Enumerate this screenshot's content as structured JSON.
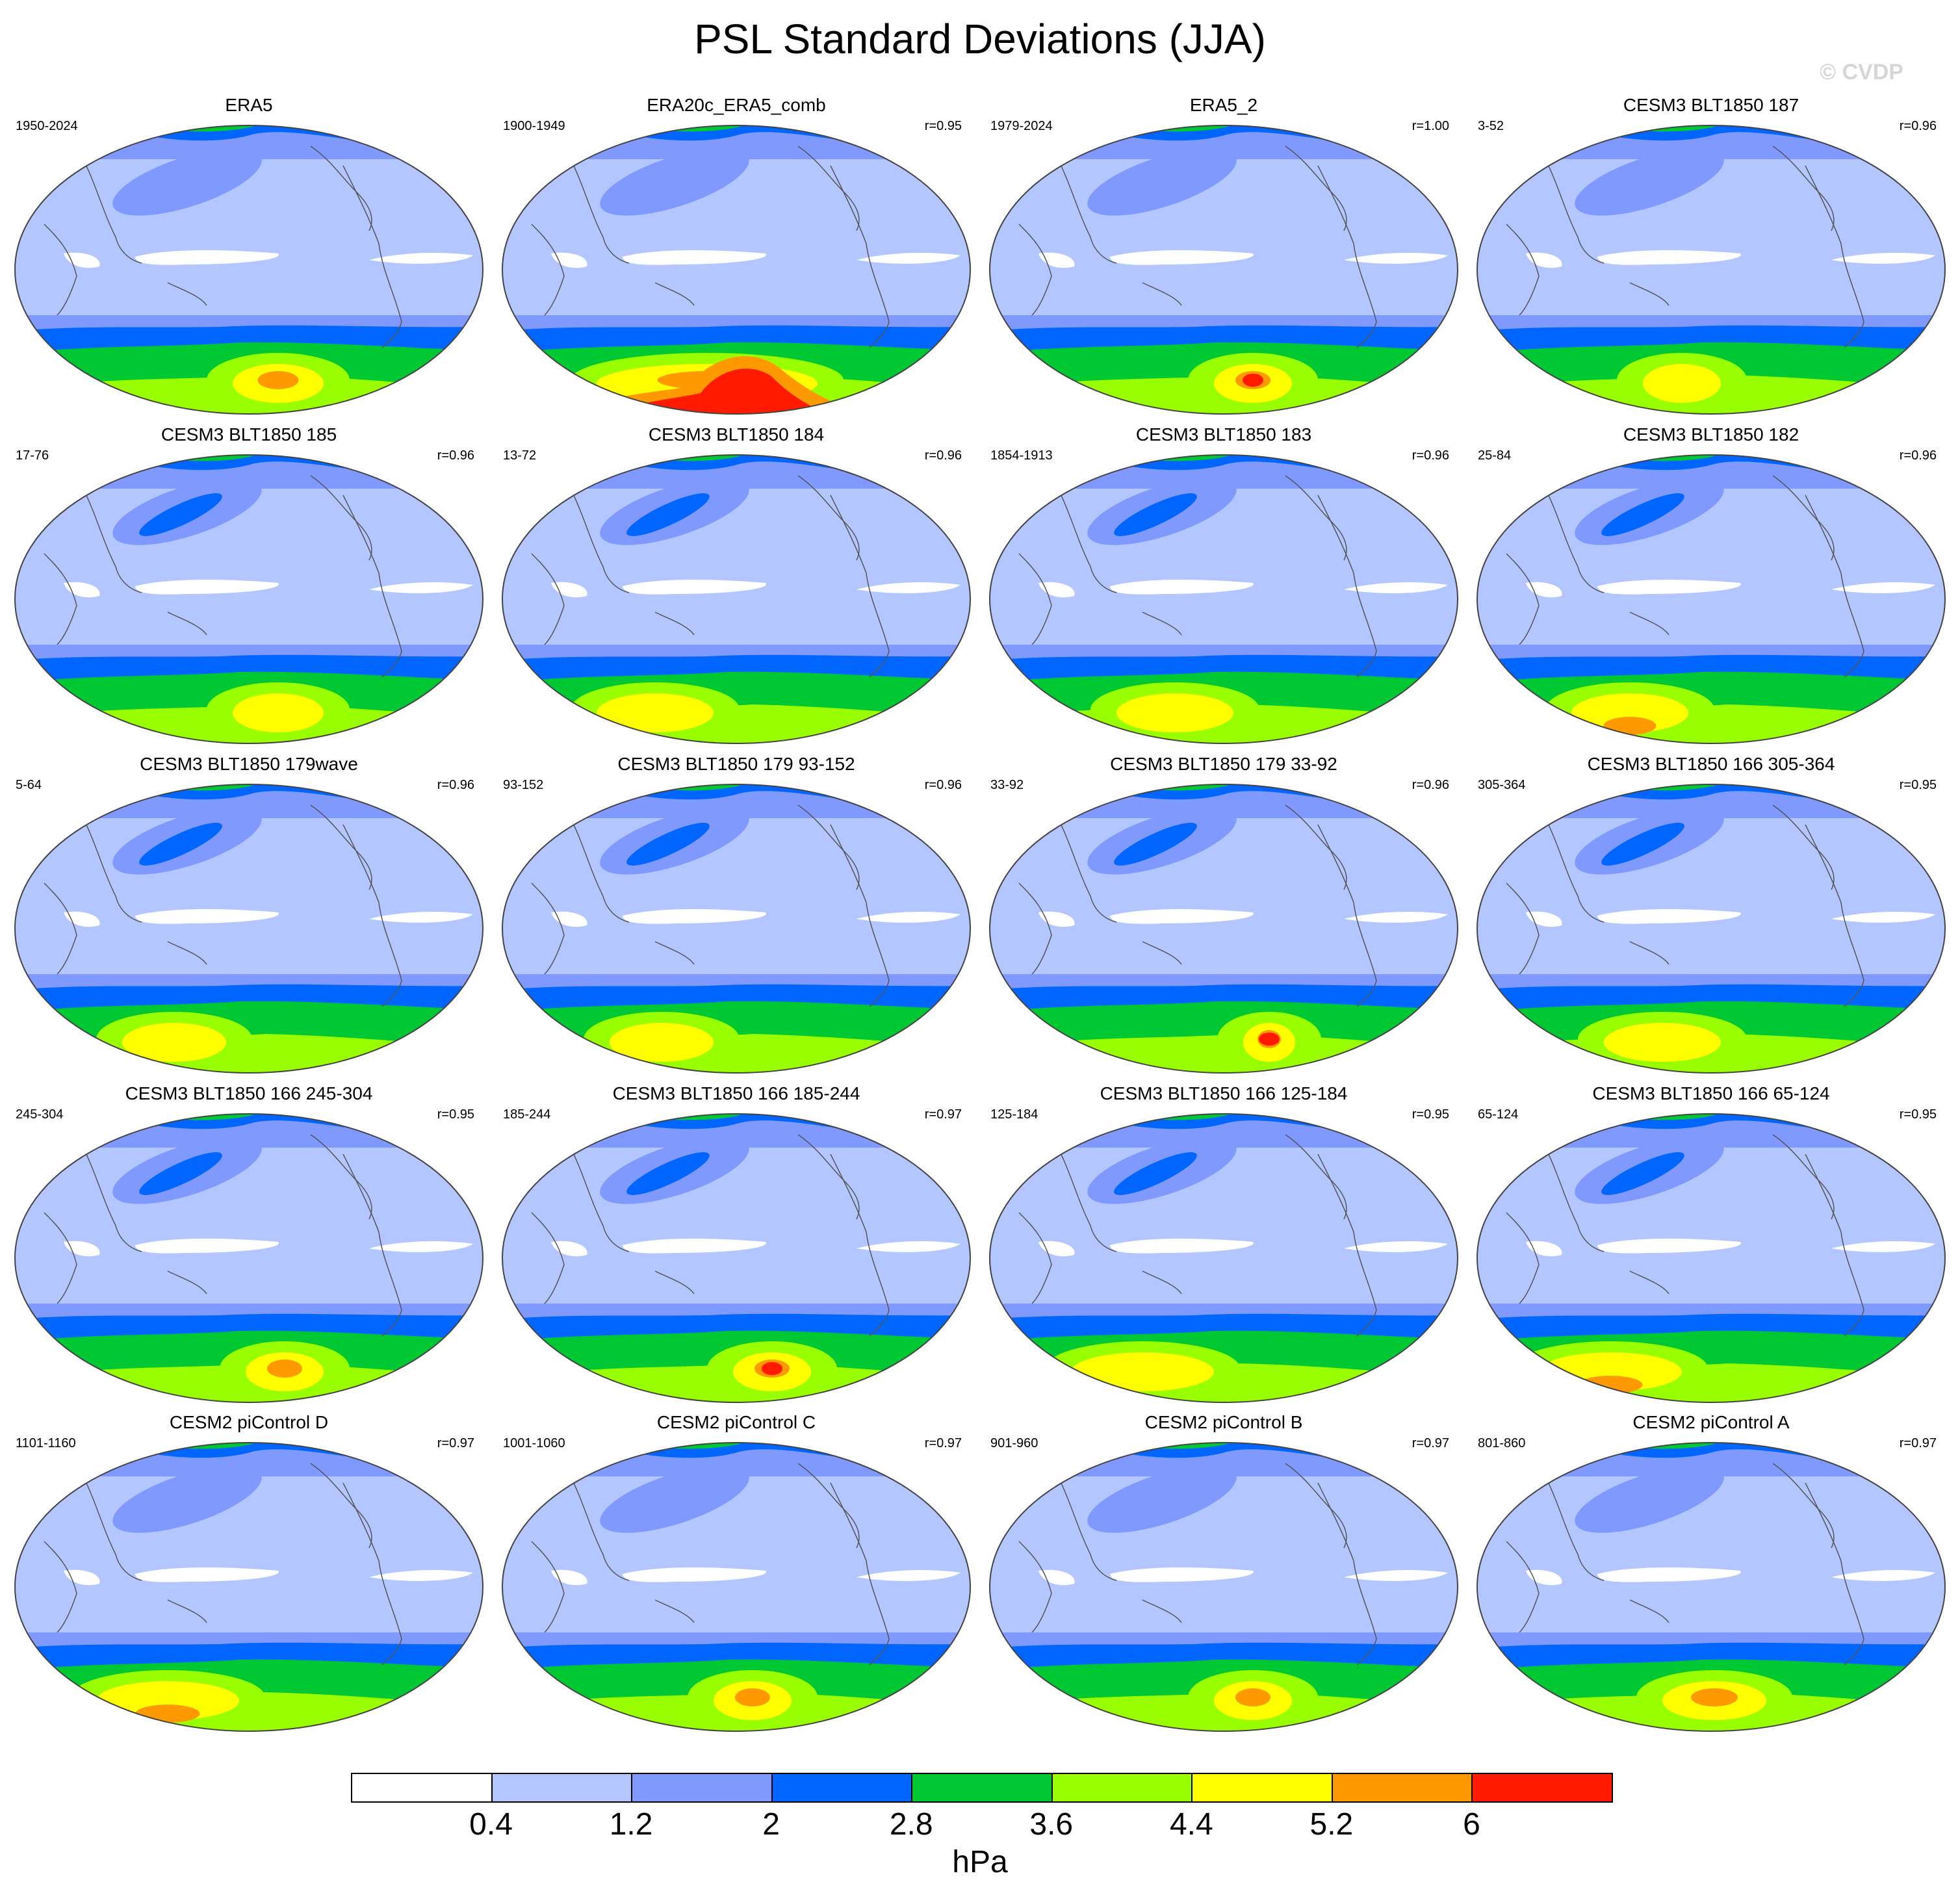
{
  "title": "PSL Standard Deviations (JJA)",
  "watermark": "© CVDP",
  "colorbar": {
    "ticks": [
      "0.4",
      "1.2",
      "2",
      "2.8",
      "3.6",
      "4.4",
      "5.2",
      "6"
    ],
    "units": "hPa",
    "colors": [
      "#ffffff",
      "#b3c6ff",
      "#8099ff",
      "#0066ff",
      "#00c832",
      "#99ff00",
      "#ffff00",
      "#ff9900",
      "#ff1a00"
    ]
  },
  "panels": [
    {
      "title": "ERA5",
      "years": "1950-2024",
      "r": ""
    },
    {
      "title": "ERA20c_ERA5_comb",
      "years": "1900-1949",
      "r": "r=0.95"
    },
    {
      "title": "ERA5_2",
      "years": "1979-2024",
      "r": "r=1.00"
    },
    {
      "title": "CESM3 BLT1850 187",
      "years": "3-52",
      "r": "r=0.96"
    },
    {
      "title": "CESM3 BLT1850 185",
      "years": "17-76",
      "r": "r=0.96"
    },
    {
      "title": "CESM3 BLT1850 184",
      "years": "13-72",
      "r": "r=0.96"
    },
    {
      "title": "CESM3 BLT1850 183",
      "years": "1854-1913",
      "r": "r=0.96"
    },
    {
      "title": "CESM3 BLT1850 182",
      "years": "25-84",
      "r": "r=0.96"
    },
    {
      "title": "CESM3 BLT1850 179wave",
      "years": "5-64",
      "r": "r=0.96"
    },
    {
      "title": "CESM3 BLT1850 179 93-152",
      "years": "93-152",
      "r": "r=0.96"
    },
    {
      "title": "CESM3 BLT1850 179 33-92",
      "years": "33-92",
      "r": "r=0.96"
    },
    {
      "title": "CESM3 BLT1850 166 305-364",
      "years": "305-364",
      "r": "r=0.95"
    },
    {
      "title": "CESM3 BLT1850 166 245-304",
      "years": "245-304",
      "r": "r=0.95"
    },
    {
      "title": "CESM3 BLT1850 166 185-244",
      "years": "185-244",
      "r": "r=0.97"
    },
    {
      "title": "CESM3 BLT1850 166 125-184",
      "years": "125-184",
      "r": "r=0.95"
    },
    {
      "title": "CESM3 BLT1850 166 65-124",
      "years": "65-124",
      "r": "r=0.95"
    },
    {
      "title": "CESM2 piControl D",
      "years": "1101-1160",
      "r": "r=0.97"
    },
    {
      "title": "CESM2 piControl C",
      "years": "1001-1060",
      "r": "r=0.97"
    },
    {
      "title": "CESM2 piControl B",
      "years": "901-960",
      "r": "r=0.97"
    },
    {
      "title": "CESM2 piControl A",
      "years": "801-860",
      "r": "r=0.97"
    }
  ]
}
